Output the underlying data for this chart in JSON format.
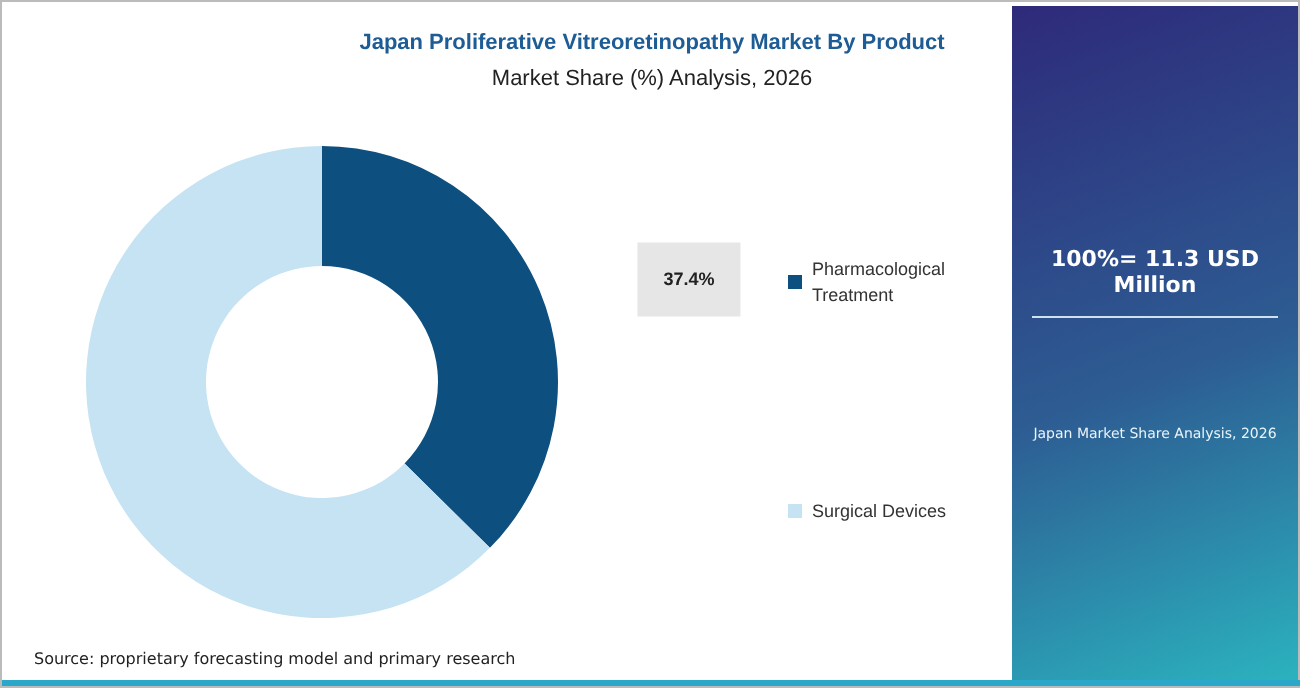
{
  "chart_data": {
    "type": "donut",
    "title": "Japan Proliferative Vitreoretinopathy Market By Product",
    "subtitle": "Market Share (%) Analysis, 2026",
    "categories": [
      "Pharmacological\nTreatment",
      "Surgical Devices"
    ],
    "values": [
      37.4,
      62.6
    ],
    "colors": [
      "#0d4f7e",
      "#c5e3f3"
    ],
    "value_labels": [
      "37.4%",
      null
    ],
    "legend": "right",
    "annotations": [
      "100%= 11.3 USD Million",
      "Japan Market Share Analysis, 2026",
      "Source: proprietary forecasting model and primary research"
    ]
  }
}
